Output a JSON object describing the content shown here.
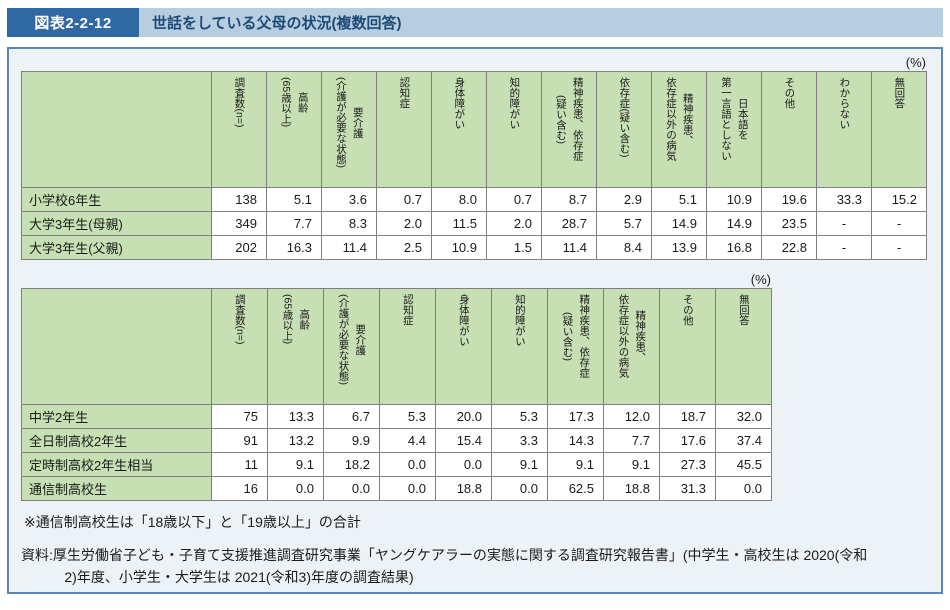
{
  "header": {
    "figure_label": "図表2-2-12",
    "title": "世話をしている父母の状況(複数回答)"
  },
  "colors": {
    "figure_label_bg": "#2f68a2",
    "title_bar_bg": "#b7cee1",
    "title_text": "#1c4a76",
    "panel_border": "#5c87b2",
    "panel_bg": "#edf2f7",
    "table_header_bg": "#c6e0b4"
  },
  "tables": [
    {
      "unit_label": "(%)",
      "columns": [
        "調査数(n=)",
        "高齢\n(65歳以上)",
        "要介護\n(介護が必要な状態)",
        "認知症",
        "身体障がい",
        "知的障がい",
        "精神疾患、依存症\n(疑い含む)",
        "依存症(疑い含む)",
        "精神疾患、\n依存症以外の病気",
        "日本語を\n第一言語としない",
        "その他",
        "わからない",
        "無回答"
      ],
      "rows": [
        {
          "label": "小学校6年生",
          "values": [
            "138",
            "5.1",
            "3.6",
            "0.7",
            "8.0",
            "0.7",
            "8.7",
            "2.9",
            "5.1",
            "10.9",
            "19.6",
            "33.3",
            "15.2"
          ]
        },
        {
          "label": "大学3年生(母親)",
          "values": [
            "349",
            "7.7",
            "8.3",
            "2.0",
            "11.5",
            "2.0",
            "28.7",
            "5.7",
            "14.9",
            "14.9",
            "23.5",
            "-",
            "-"
          ]
        },
        {
          "label": "大学3年生(父親)",
          "values": [
            "202",
            "16.3",
            "11.4",
            "2.5",
            "10.9",
            "1.5",
            "11.4",
            "8.4",
            "13.9",
            "16.8",
            "22.8",
            "-",
            "-"
          ]
        }
      ]
    },
    {
      "unit_label": "(%)",
      "columns": [
        "調査数(n=)",
        "高齢\n(65歳以上)",
        "要介護\n(介護が必要な状態)",
        "認知症",
        "身体障がい",
        "知的障がい",
        "精神疾患、依存症\n(疑い含む)",
        "精神疾患、\n依存症以外の病気",
        "その他",
        "無回答"
      ],
      "rows": [
        {
          "label": "中学2年生",
          "values": [
            "75",
            "13.3",
            "6.7",
            "5.3",
            "20.0",
            "5.3",
            "17.3",
            "12.0",
            "18.7",
            "32.0"
          ]
        },
        {
          "label": "全日制高校2年生",
          "values": [
            "91",
            "13.2",
            "9.9",
            "4.4",
            "15.4",
            "3.3",
            "14.3",
            "7.7",
            "17.6",
            "37.4"
          ]
        },
        {
          "label": "定時制高校2年生相当",
          "values": [
            "11",
            "9.1",
            "18.2",
            "0.0",
            "0.0",
            "9.1",
            "9.1",
            "9.1",
            "27.3",
            "45.5"
          ]
        },
        {
          "label": "通信制高校生",
          "values": [
            "16",
            "0.0",
            "0.0",
            "0.0",
            "18.8",
            "0.0",
            "62.5",
            "18.8",
            "31.3",
            "0.0"
          ]
        }
      ]
    }
  ],
  "footnote": "※通信制高校生は「18歳以下」と「19歳以上」の合計",
  "source": "資料:厚生労働省子ども・子育て支援推進調査研究事業「ヤングケアラーの実態に関する調査研究報告書」(中学生・高校生は 2020(令和2)年度、小学生・大学生は 2021(令和3)年度の調査結果)"
}
